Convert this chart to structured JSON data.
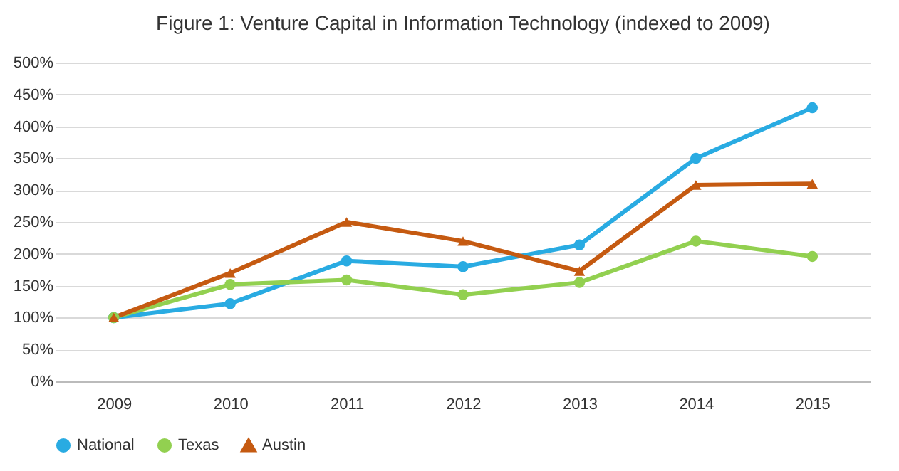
{
  "chart_data": {
    "type": "line",
    "title": "Figure 1: Venture Capital in Information Technology (indexed to 2009)",
    "categories": [
      "2009",
      "2010",
      "2011",
      "2012",
      "2013",
      "2014",
      "2015"
    ],
    "series": [
      {
        "name": "National",
        "color": "#29abe2",
        "values": [
          100,
          122,
          189,
          180,
          214,
          350,
          429
        ]
      },
      {
        "name": "Texas",
        "color": "#92d050",
        "values": [
          100,
          152,
          159,
          136,
          155,
          220,
          196
        ]
      },
      {
        "name": "Austin",
        "color": "#c55a11",
        "values": [
          100,
          170,
          250,
          220,
          173,
          308,
          310
        ],
        "marker": "triangle"
      }
    ],
    "marker": "circle",
    "ylim": [
      0,
      500
    ],
    "yticks": [
      {
        "value": 0,
        "label": "0%"
      },
      {
        "value": 50,
        "label": "50%"
      },
      {
        "value": 100,
        "label": "100%"
      },
      {
        "value": 150,
        "label": "150%"
      },
      {
        "value": 200,
        "label": "200%"
      },
      {
        "value": 250,
        "label": "250%"
      },
      {
        "value": 300,
        "label": "300%"
      },
      {
        "value": 350,
        "label": "350%"
      },
      {
        "value": 400,
        "label": "400%"
      },
      {
        "value": 450,
        "label": "450%"
      },
      {
        "value": 500,
        "label": "500%"
      }
    ],
    "grid": "y",
    "legend": "bottom"
  }
}
